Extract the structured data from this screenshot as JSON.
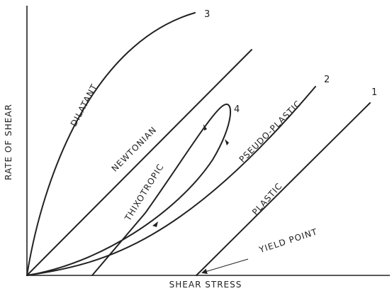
{
  "axes": {
    "x_label": "SHEAR STRESS",
    "y_label": "RATE OF SHEAR"
  },
  "curves": [
    {
      "label": "DILATANT",
      "number": "3"
    },
    {
      "label": "NEWTONIAN"
    },
    {
      "label": "THIXOTROPIC",
      "number": "4"
    },
    {
      "label": "PSEUDO-PLASTIC",
      "number": "2"
    },
    {
      "label": "PLASTIC",
      "number": "1"
    }
  ],
  "annotations": {
    "yield_point": "YIELD POINT"
  }
}
